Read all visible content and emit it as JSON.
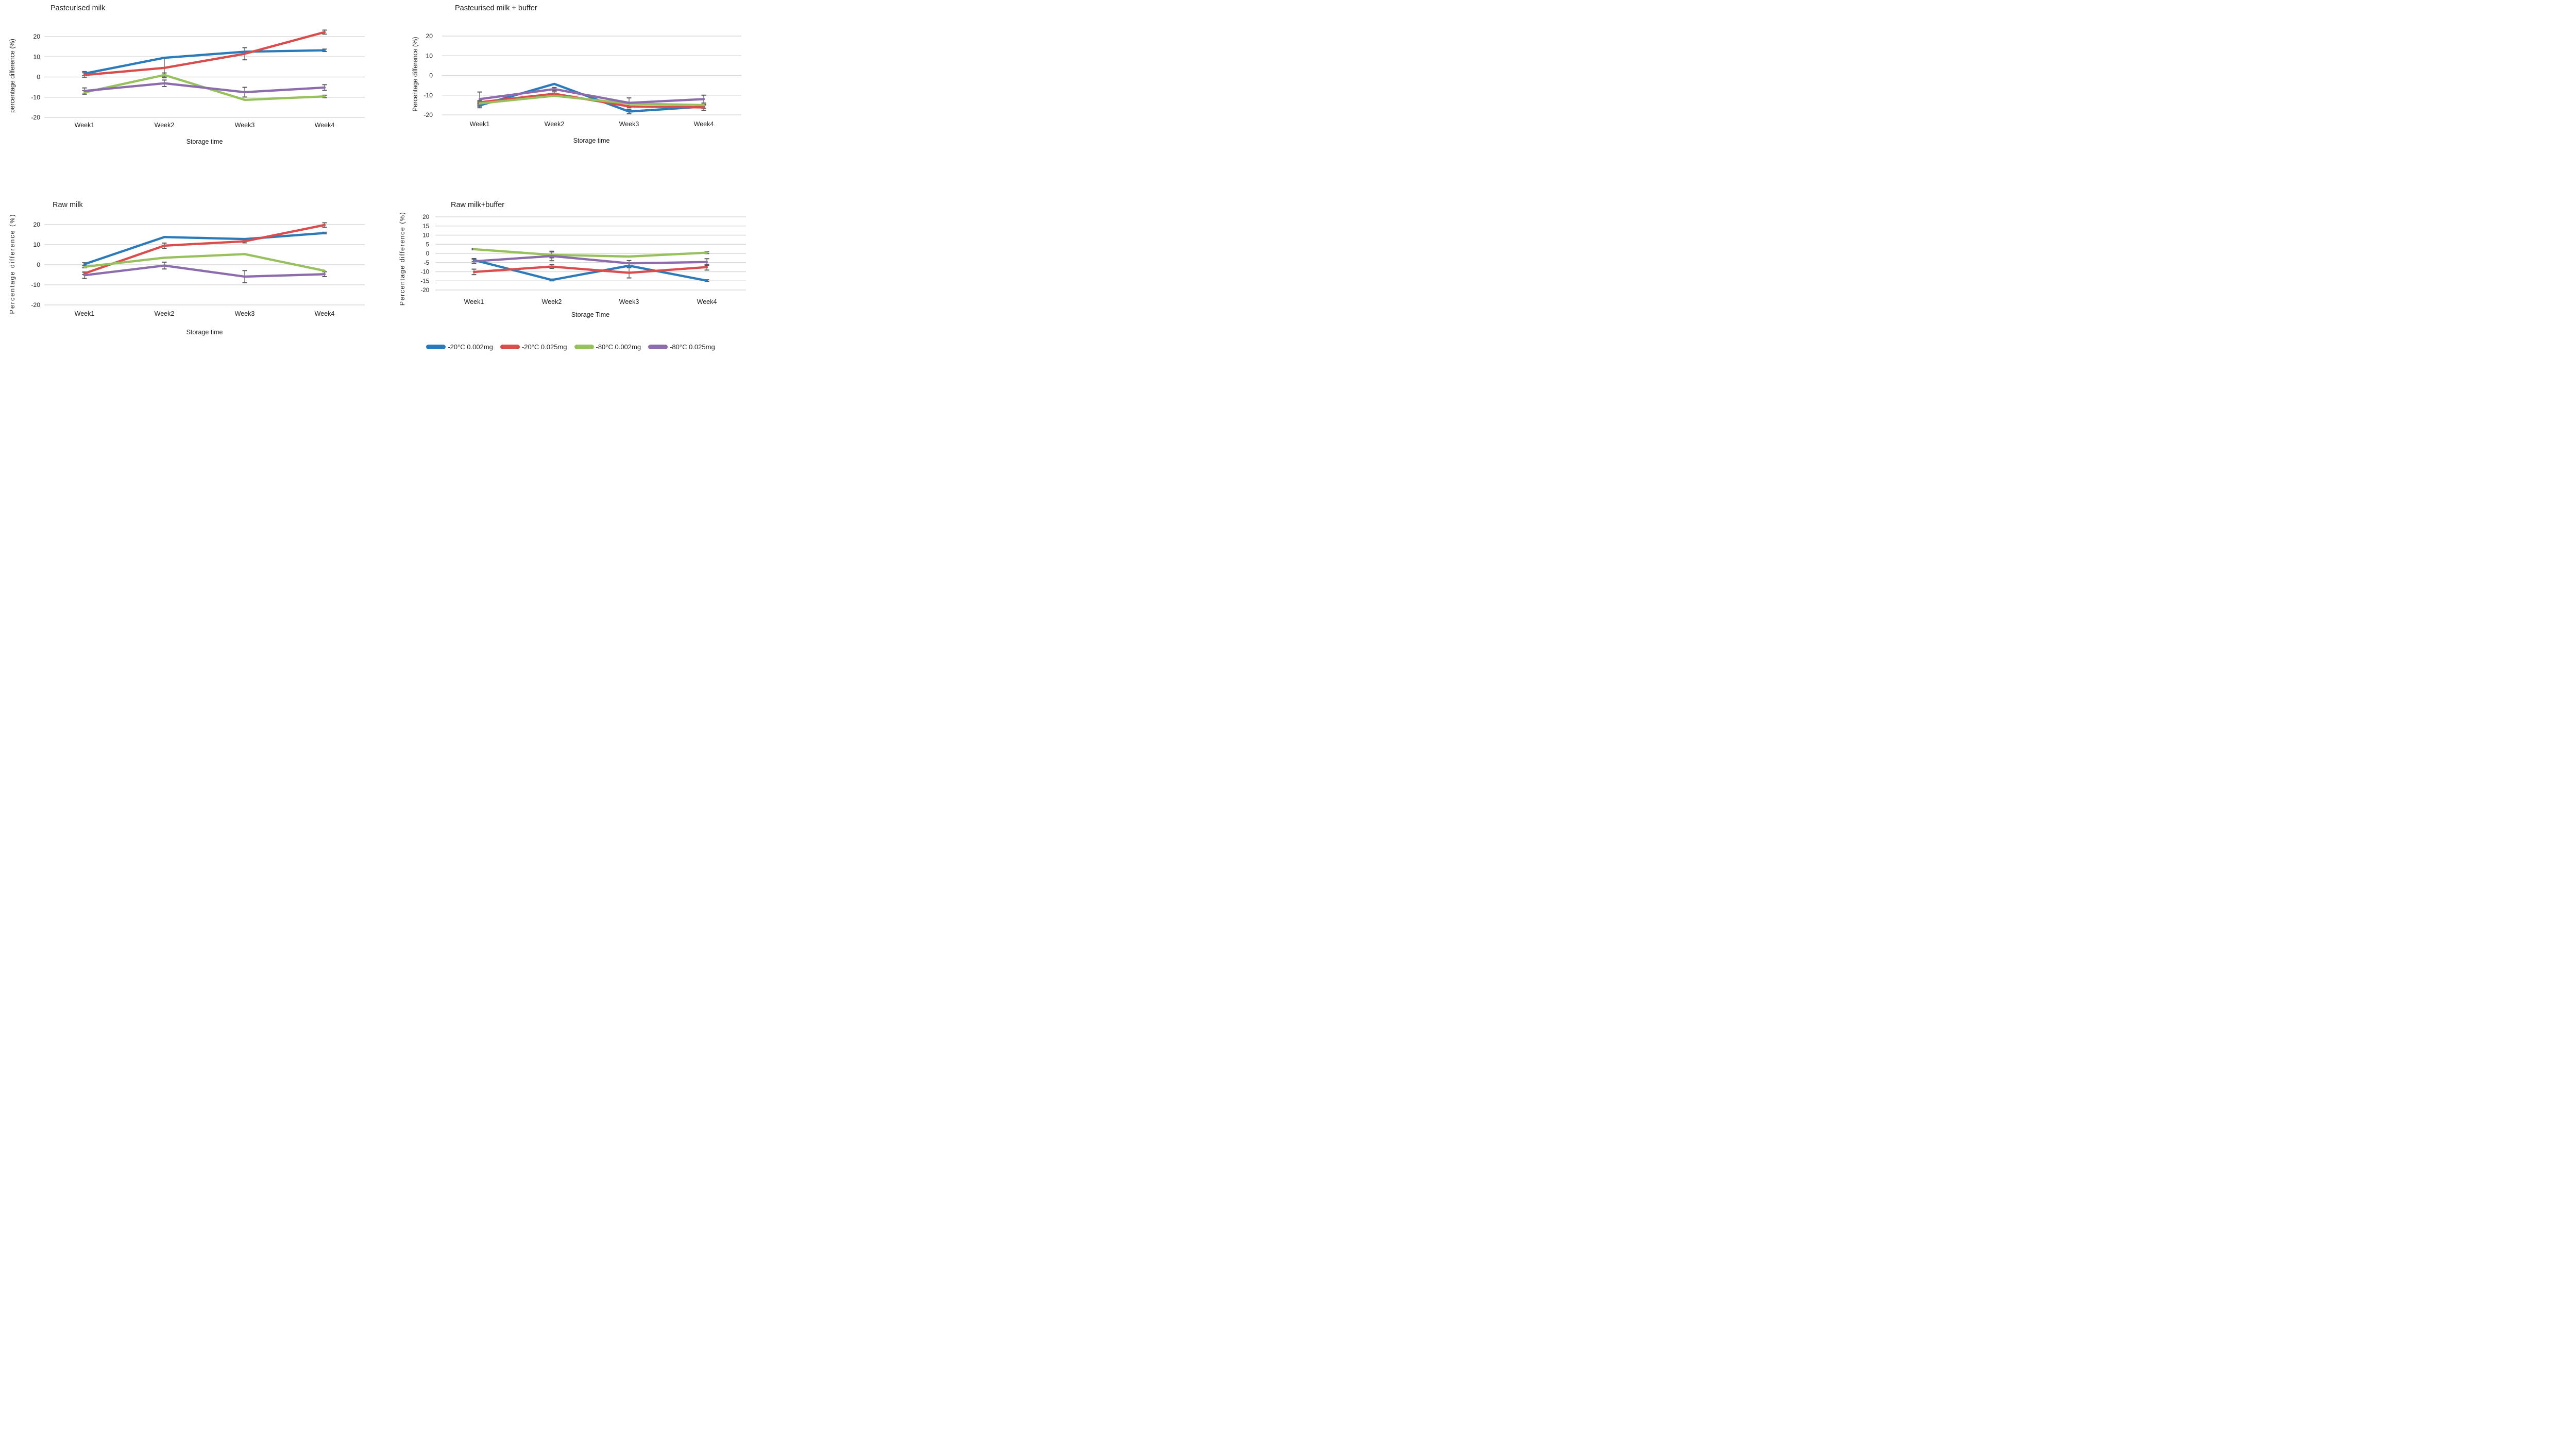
{
  "chart_data": [
    {
      "type": "line",
      "title": "Pasteurised milk",
      "xlabel": "Storage time",
      "ylabel": "percentage difference (%)",
      "categories": [
        "Week1",
        "Week2",
        "Week3",
        "Week4"
      ],
      "yticks": [
        20,
        10,
        0,
        -10,
        -20
      ],
      "ylim": [
        -25,
        25
      ],
      "grid": "horizontal",
      "legend_position": "shared-bottom",
      "series": [
        {
          "name": "-20°C 0.002mg",
          "color": "#2B7BBA",
          "values": [
            1.7,
            9.5,
            12.5,
            13.2
          ],
          "errors": [
            1.0,
            null,
            null,
            0.6
          ]
        },
        {
          "name": "-20°C 0.025mg",
          "color": "#DB4C4C",
          "values": [
            1.0,
            4.5,
            11.5,
            22.2
          ],
          "errors": [
            1.1,
            4.9,
            3.0,
            1.0
          ]
        },
        {
          "name": "-80°C 0.002mg",
          "color": "#97C15C",
          "values": [
            -7.6,
            1.0,
            -11.3,
            -9.6
          ],
          "errors": [
            0.9,
            1.0,
            null,
            0.6
          ]
        },
        {
          "name": "-80°C 0.025mg",
          "color": "#8D6CAE",
          "values": [
            -6.9,
            -3.1,
            -7.5,
            -5.2
          ],
          "errors": [
            1.5,
            1.6,
            2.4,
            1.4
          ]
        }
      ]
    },
    {
      "type": "line",
      "title": "Pasteurised milk + buffer",
      "xlabel": "Storage time",
      "ylabel": "Percentage difference (%)",
      "categories": [
        "Week1",
        "Week2",
        "Week3",
        "Week4"
      ],
      "yticks": [
        20,
        10,
        0,
        -10,
        -20
      ],
      "ylim": [
        -25,
        25
      ],
      "grid": "horizontal",
      "legend_position": "shared-bottom",
      "series": [
        {
          "name": "-20°C 0.002mg",
          "color": "#2B7BBA",
          "values": [
            -15.2,
            -4.3,
            -18.3,
            -15.8
          ],
          "errors": [
            1.2,
            null,
            1.1,
            0.8
          ]
        },
        {
          "name": "-20°C 0.025mg",
          "color": "#DB4C4C",
          "values": [
            -13.6,
            -9.3,
            -15.7,
            -16.2
          ],
          "errors": [
            0.8,
            1.0,
            null,
            1.5
          ]
        },
        {
          "name": "-80°C 0.002mg",
          "color": "#97C15C",
          "values": [
            -14.2,
            -10.3,
            -14.3,
            -15.0
          ],
          "errors": [
            0.8,
            null,
            null,
            null
          ]
        },
        {
          "name": "-80°C 0.025mg",
          "color": "#8D6CAE",
          "values": [
            -12.0,
            -6.9,
            -13.9,
            -12.0
          ],
          "errors": [
            3.6,
            0.8,
            2.5,
            2.0
          ]
        }
      ]
    },
    {
      "type": "line",
      "title": "Raw milk",
      "xlabel": "Storage time",
      "ylabel": "Percentage difference (%)",
      "categories": [
        "Week1",
        "Week2",
        "Week3",
        "Week4"
      ],
      "yticks": [
        20,
        10,
        0,
        -10,
        -20
      ],
      "ylim": [
        -25,
        25
      ],
      "grid": "horizontal",
      "legend_position": "shared-bottom",
      "series": [
        {
          "name": "-20°C 0.002mg",
          "color": "#2B7BBA",
          "values": [
            0.3,
            13.8,
            12.8,
            15.8
          ],
          "errors": [
            0.7,
            null,
            null,
            0.4
          ]
        },
        {
          "name": "-20°C 0.025mg",
          "color": "#DB4C4C",
          "values": [
            -4.3,
            9.5,
            11.7,
            19.8
          ],
          "errors": [
            0.6,
            1.3,
            0.8,
            1.1
          ]
        },
        {
          "name": "-80°C 0.002mg",
          "color": "#97C15C",
          "values": [
            -1.0,
            3.5,
            5.3,
            -3.0
          ],
          "errors": [
            0.5,
            null,
            null,
            null
          ]
        },
        {
          "name": "-80°C 0.025mg",
          "color": "#8D6CAE",
          "values": [
            -5.2,
            -0.4,
            -5.9,
            -4.7
          ],
          "errors": [
            1.6,
            1.7,
            3.0,
            1.2
          ]
        }
      ]
    },
    {
      "type": "line",
      "title": "Raw milk+buffer",
      "xlabel": "Storage Time",
      "ylabel": "Percentage difference (%)",
      "categories": [
        "Week1",
        "Week2",
        "Week3",
        "Week4"
      ],
      "yticks": [
        20,
        15,
        10,
        5,
        0,
        -5,
        -10,
        -15,
        -20
      ],
      "ylim": [
        -25,
        25
      ],
      "grid": "horizontal",
      "legend_position": "shared-bottom",
      "series": [
        {
          "name": "-20°C 0.002mg",
          "color": "#2B7BBA",
          "values": [
            -3.6,
            -14.5,
            -6.7,
            -14.9
          ],
          "errors": [
            0.8,
            0.5,
            null,
            0.5
          ]
        },
        {
          "name": "-20°C 0.025mg",
          "color": "#DB4C4C",
          "values": [
            -10.1,
            -7.2,
            -10.6,
            -7.5
          ],
          "errors": [
            1.5,
            1.0,
            2.8,
            1.6
          ]
        },
        {
          "name": "-80°C 0.002mg",
          "color": "#97C15C",
          "values": [
            2.3,
            -0.8,
            -1.7,
            0.4
          ],
          "errors": [
            0.3,
            1.6,
            null,
            0.5
          ]
        },
        {
          "name": "-80°C 0.025mg",
          "color": "#8D6CAE",
          "values": [
            -4.3,
            -1.4,
            -5.4,
            -4.7
          ],
          "errors": [
            1.2,
            2.6,
            1.5,
            1.8
          ]
        }
      ]
    }
  ],
  "legend": {
    "items": [
      {
        "label": "-20°C 0.002mg",
        "color": "#2B7BBA"
      },
      {
        "label": "-20°C 0.025mg",
        "color": "#DB4C4C"
      },
      {
        "label": "-80°C 0.002mg",
        "color": "#97C15C"
      },
      {
        "label": "-80°C 0.025mg",
        "color": "#8D6CAE"
      }
    ]
  },
  "style_tokens": {
    "gridline_color": "#D9D9D9",
    "error_bar_color": "#5A5A5A",
    "text_color": "#1f1f1f",
    "background": "#FFFFFF"
  }
}
